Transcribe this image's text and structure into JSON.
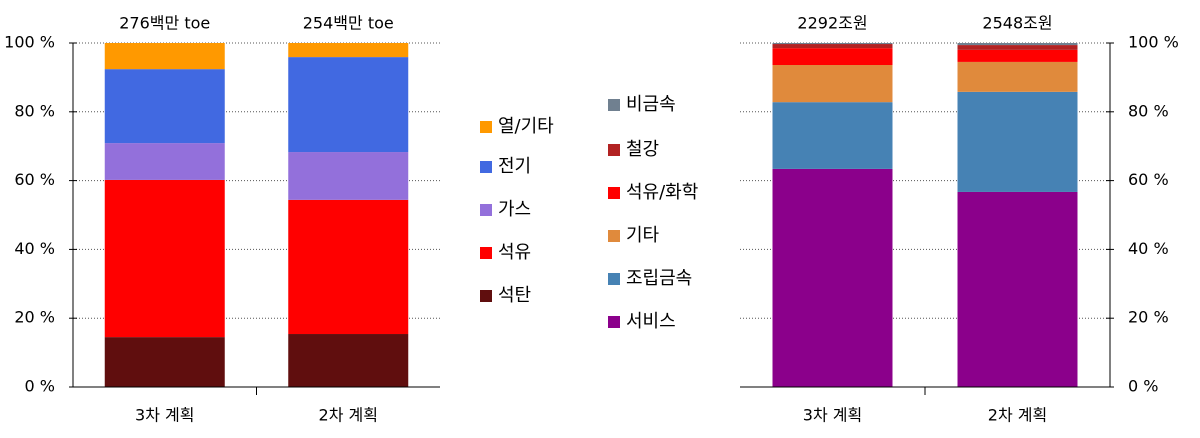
{
  "chart_data": [
    {
      "type": "bar",
      "stacked": true,
      "axis_side": "left",
      "grid": true,
      "categories": [
        "3차 계획",
        "2차 계획"
      ],
      "bar_labels": [
        "276백만 toe",
        "254백만 toe"
      ],
      "ylim": [
        0,
        100
      ],
      "yticks": [
        {
          "value": 0,
          "label": "0 %"
        },
        {
          "value": 20,
          "label": "20 %"
        },
        {
          "value": 40,
          "label": "40 %"
        },
        {
          "value": 60,
          "label": "60 %"
        },
        {
          "value": 80,
          "label": "80 %"
        },
        {
          "value": 100,
          "label": "100 %"
        }
      ],
      "series": [
        {
          "name": "석탄",
          "color": "#600e0e",
          "values": [
            14.5,
            15.4
          ]
        },
        {
          "name": "석유",
          "color": "#ff0000",
          "values": [
            45.7,
            39.0
          ]
        },
        {
          "name": "가스",
          "color": "#9370db",
          "values": [
            10.7,
            13.9
          ]
        },
        {
          "name": "전기",
          "color": "#4169e1",
          "values": [
            21.5,
            27.6
          ]
        },
        {
          "name": "열/기타",
          "color": "#ff9900",
          "values": [
            7.6,
            4.1
          ]
        }
      ]
    },
    {
      "type": "bar",
      "stacked": true,
      "axis_side": "right",
      "grid": true,
      "categories": [
        "3차 계획",
        "2차 계획"
      ],
      "bar_labels": [
        "2292조원",
        "2548조원"
      ],
      "ylim": [
        0,
        100
      ],
      "yticks": [
        {
          "value": 0,
          "label": "0 %"
        },
        {
          "value": 20,
          "label": "20 %"
        },
        {
          "value": 40,
          "label": "40 %"
        },
        {
          "value": 60,
          "label": "60 %"
        },
        {
          "value": 80,
          "label": "80 %"
        },
        {
          "value": 100,
          "label": "100 %"
        }
      ],
      "series": [
        {
          "name": "서비스",
          "color": "#8b008b",
          "values": [
            63.4,
            56.7
          ]
        },
        {
          "name": "조립금속",
          "color": "#4682b4",
          "values": [
            19.4,
            29.1
          ]
        },
        {
          "name": "기타",
          "color": "#e08a3c",
          "values": [
            10.8,
            8.7
          ]
        },
        {
          "name": "석유/화학",
          "color": "#ff0000",
          "values": [
            4.9,
            3.5
          ]
        },
        {
          "name": "철강",
          "color": "#b22222",
          "values": [
            1.2,
            1.4
          ]
        },
        {
          "name": "비금속",
          "color": "#708090",
          "values": [
            0.3,
            0.6
          ]
        }
      ]
    }
  ]
}
